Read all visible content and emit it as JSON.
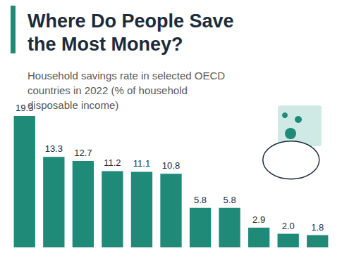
{
  "chart_data": {
    "type": "bar",
    "title": "Where Do People Save the Most Money?",
    "subtitle": "Household savings rate in selected OECD countries in 2022 (% of household disposable income)",
    "categories": [
      null,
      null,
      null,
      null,
      null,
      null,
      null,
      null,
      null,
      null,
      null
    ],
    "values": [
      19.3,
      13.3,
      12.7,
      11.2,
      11.1,
      10.8,
      5.8,
      5.8,
      2.9,
      2.0,
      1.8
    ],
    "value_labels": [
      "19.3",
      "13.3",
      "12.7",
      "11.2",
      "11.1",
      "10.8",
      "5.8",
      "5.8",
      "2.9",
      "2.0",
      "1.8"
    ],
    "color": "#1f8a78",
    "data_labels": true,
    "tick_labels": false,
    "grid": false
  }
}
